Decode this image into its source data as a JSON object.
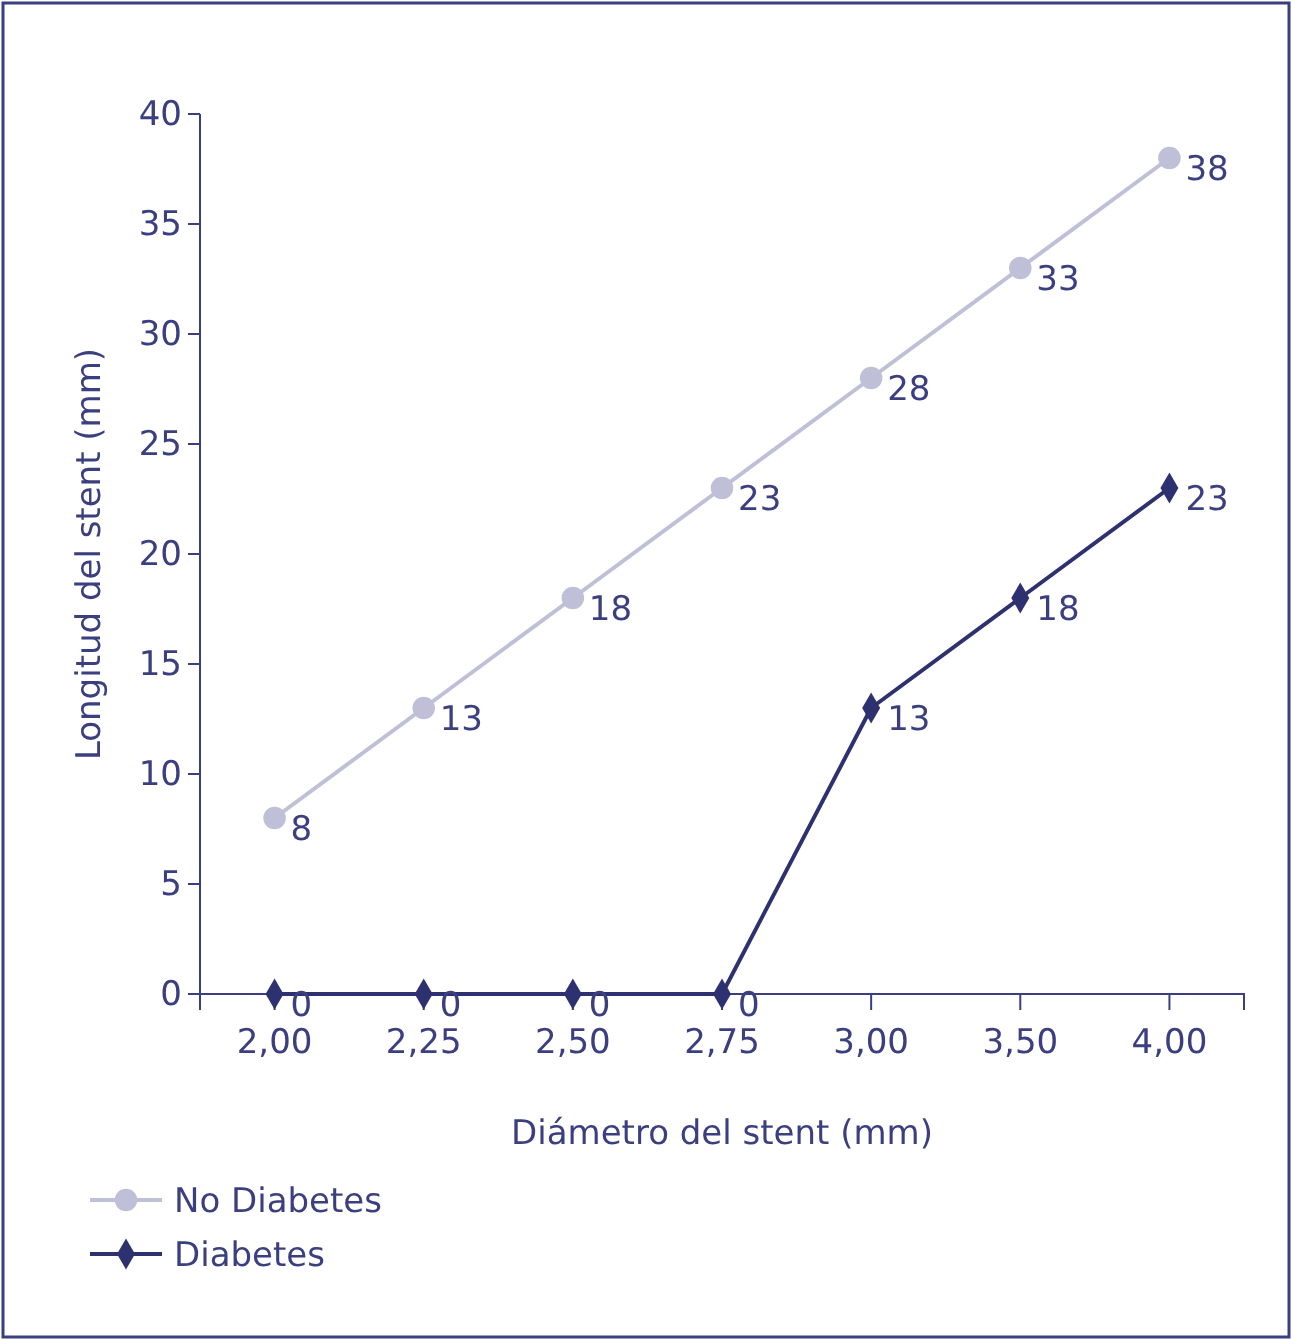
{
  "chart_data": {
    "type": "line",
    "xlabel": "Diámetro del stent (mm)",
    "ylabel": "Longitud del stent (mm)",
    "categories": [
      "2,00",
      "2,25",
      "2,50",
      "2,75",
      "3,00",
      "3,50",
      "4,00"
    ],
    "series": [
      {
        "name": "No Diabetes",
        "color": "#c0bfd8",
        "marker": "circle",
        "values": [
          8,
          13,
          18,
          23,
          28,
          33,
          38
        ]
      },
      {
        "name": "Diabetes",
        "color": "#2e3170",
        "marker": "diamond",
        "values": [
          0,
          0,
          0,
          0,
          13,
          18,
          23
        ]
      }
    ],
    "ylim": [
      0,
      40
    ],
    "yticks": [
      0,
      5,
      10,
      15,
      20,
      25,
      30,
      35,
      40
    ],
    "data_labels": true,
    "legend": "bottom left",
    "grid": false,
    "line_style": "solid"
  }
}
